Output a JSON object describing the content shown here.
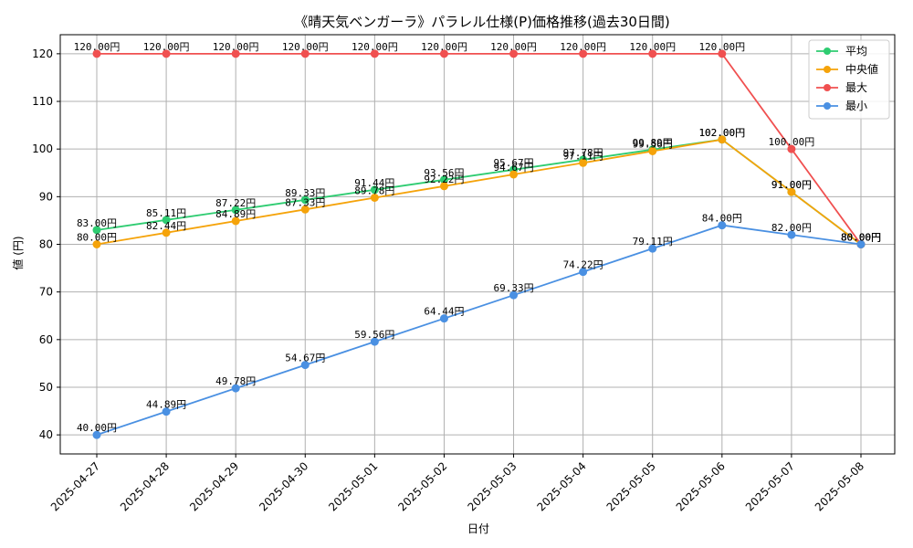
{
  "chart_data": {
    "type": "line",
    "title": "《晴天気ベンガーラ》パラレル仕様(P)価格推移(過去30日間)",
    "xlabel": "日付",
    "ylabel": "値 (円)",
    "ylim": [
      36,
      124
    ],
    "yticks": [
      40,
      50,
      60,
      70,
      80,
      90,
      100,
      110,
      120
    ],
    "grid": true,
    "legend_position": "top-right",
    "label_suffix": "円",
    "categories": [
      "2025-04-27",
      "2025-04-28",
      "2025-04-29",
      "2025-04-30",
      "2025-05-01",
      "2025-05-02",
      "2025-05-03",
      "2025-05-04",
      "2025-05-05",
      "2025-05-06",
      "2025-05-07",
      "2025-05-08"
    ],
    "series": [
      {
        "name": "平均",
        "color": "#2ecc71",
        "values": [
          83.0,
          85.11,
          87.22,
          89.33,
          91.44,
          93.56,
          95.67,
          97.78,
          99.89,
          102.0,
          91.0,
          80.0
        ]
      },
      {
        "name": "中央値",
        "color": "#f5a30a",
        "values": [
          80.0,
          82.44,
          84.89,
          87.33,
          89.78,
          92.22,
          94.67,
          97.11,
          99.56,
          102.0,
          91.0,
          80.0
        ]
      },
      {
        "name": "最大",
        "color": "#f05050",
        "values": [
          120.0,
          120.0,
          120.0,
          120.0,
          120.0,
          120.0,
          120.0,
          120.0,
          120.0,
          120.0,
          100.0,
          80.0
        ]
      },
      {
        "name": "最小",
        "color": "#4a90e2",
        "values": [
          40.0,
          44.89,
          49.78,
          54.67,
          59.56,
          64.44,
          69.33,
          74.22,
          79.11,
          84.0,
          82.0,
          80.0
        ]
      }
    ]
  }
}
